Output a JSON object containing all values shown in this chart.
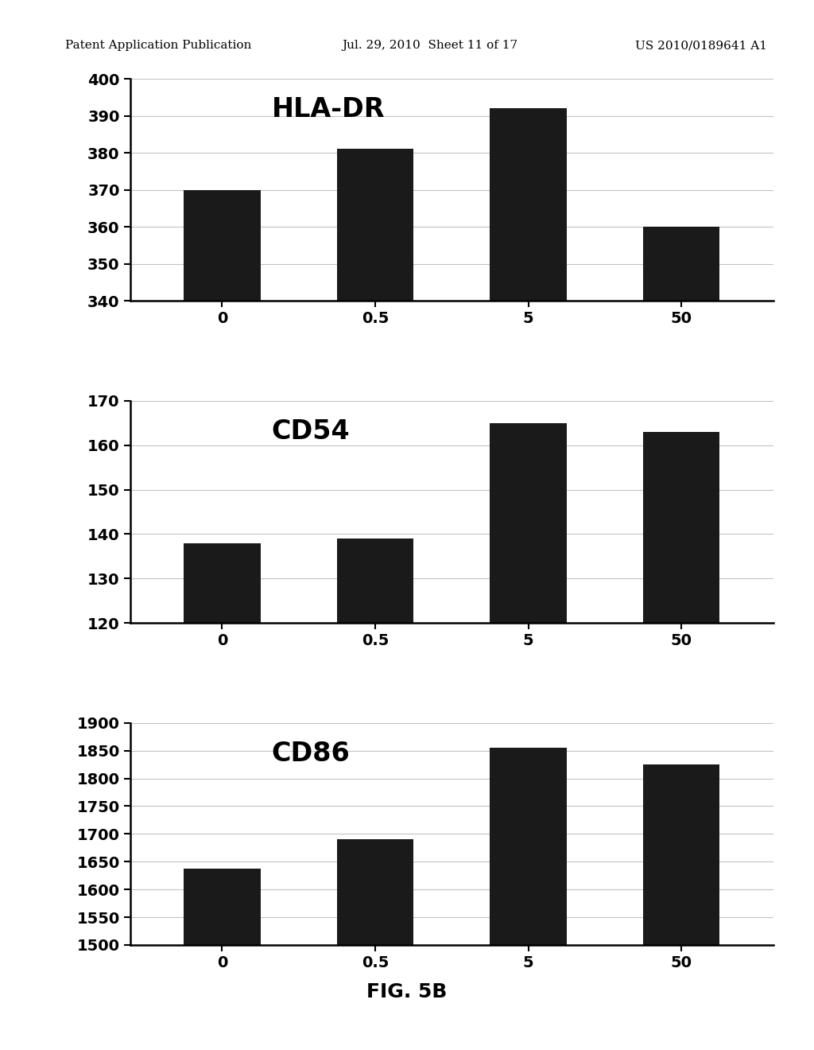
{
  "charts": [
    {
      "title": "HLA-DR",
      "x_labels": [
        "0",
        "0.5",
        "5",
        "50"
      ],
      "values": [
        370,
        381,
        392,
        360
      ],
      "ylim": [
        340,
        400
      ],
      "yticks": [
        340,
        350,
        360,
        370,
        380,
        390,
        400
      ],
      "bar_color": "#1a1a1a",
      "bar_width": 0.5
    },
    {
      "title": "CD54",
      "x_labels": [
        "0",
        "0.5",
        "5",
        "50"
      ],
      "values": [
        138,
        139,
        165,
        163
      ],
      "ylim": [
        120,
        170
      ],
      "yticks": [
        120,
        130,
        140,
        150,
        160,
        170
      ],
      "bar_color": "#1a1a1a",
      "bar_width": 0.5
    },
    {
      "title": "CD86",
      "x_labels": [
        "0",
        "0.5",
        "5",
        "50"
      ],
      "values": [
        1638,
        1690,
        1855,
        1825
      ],
      "ylim": [
        1500,
        1900
      ],
      "yticks": [
        1500,
        1550,
        1600,
        1650,
        1700,
        1750,
        1800,
        1850,
        1900
      ],
      "bar_color": "#1a1a1a",
      "bar_width": 0.5
    }
  ],
  "fig_caption": "FIG. 5B",
  "header_left": "Patent Application Publication",
  "header_mid": "Jul. 29, 2010  Sheet 11 of 17",
  "header_right": "US 2010/0189641 A1",
  "background_color": "#ffffff",
  "title_fontsize": 24,
  "tick_fontsize": 14,
  "caption_fontsize": 18,
  "header_fontsize": 11
}
